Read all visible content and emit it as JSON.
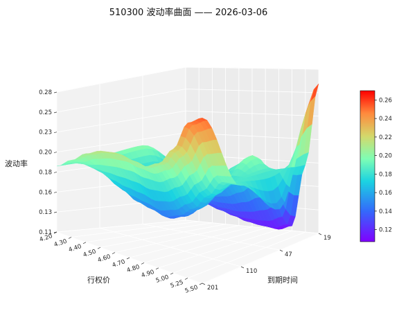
{
  "chart_data": {
    "type": "surface",
    "title": "510300 波动率曲面 —— 2026-03-06",
    "xlabel": "行权价",
    "ylabel": "到期时间",
    "zlabel": "波动率",
    "x_ticks": [
      "4.20",
      "4.30",
      "4.40",
      "4.50",
      "4.60",
      "4.70",
      "4.80",
      "4.90",
      "5.00",
      "5.25",
      "5.50"
    ],
    "y_ticks": [
      "19",
      "47",
      "110",
      "201"
    ],
    "z_ticks": [
      "0.11",
      "0.13",
      "0.16",
      "0.18",
      "0.20",
      "0.23",
      "0.25",
      "0.28"
    ],
    "zlim": [
      0.11,
      0.28
    ],
    "colormap": "rainbow",
    "colorbar": {
      "ticks": [
        "0.12",
        "0.14",
        "0.16",
        "0.18",
        "0.20",
        "0.22",
        "0.24",
        "0.26"
      ],
      "range": [
        0.107,
        0.27
      ]
    },
    "expiry_days": [
      19,
      47,
      110,
      201
    ],
    "strikes": [
      4.2,
      4.3,
      4.4,
      4.5,
      4.6,
      4.7,
      4.8,
      4.9,
      5.0,
      5.25,
      5.5
    ],
    "iv_surface": [
      [
        0.17,
        0.15,
        0.13,
        0.125,
        0.12,
        0.115,
        0.112,
        0.11,
        0.115,
        0.18,
        0.265
      ],
      [
        0.2,
        0.18,
        0.165,
        0.16,
        0.16,
        0.165,
        0.175,
        0.19,
        0.2,
        0.185,
        0.15
      ],
      [
        0.195,
        0.175,
        0.16,
        0.15,
        0.145,
        0.14,
        0.145,
        0.155,
        0.17,
        0.185,
        0.185
      ],
      [
        0.19,
        0.2,
        0.21,
        0.215,
        0.215,
        0.21,
        0.205,
        0.21,
        0.225,
        0.25,
        0.255
      ]
    ]
  }
}
